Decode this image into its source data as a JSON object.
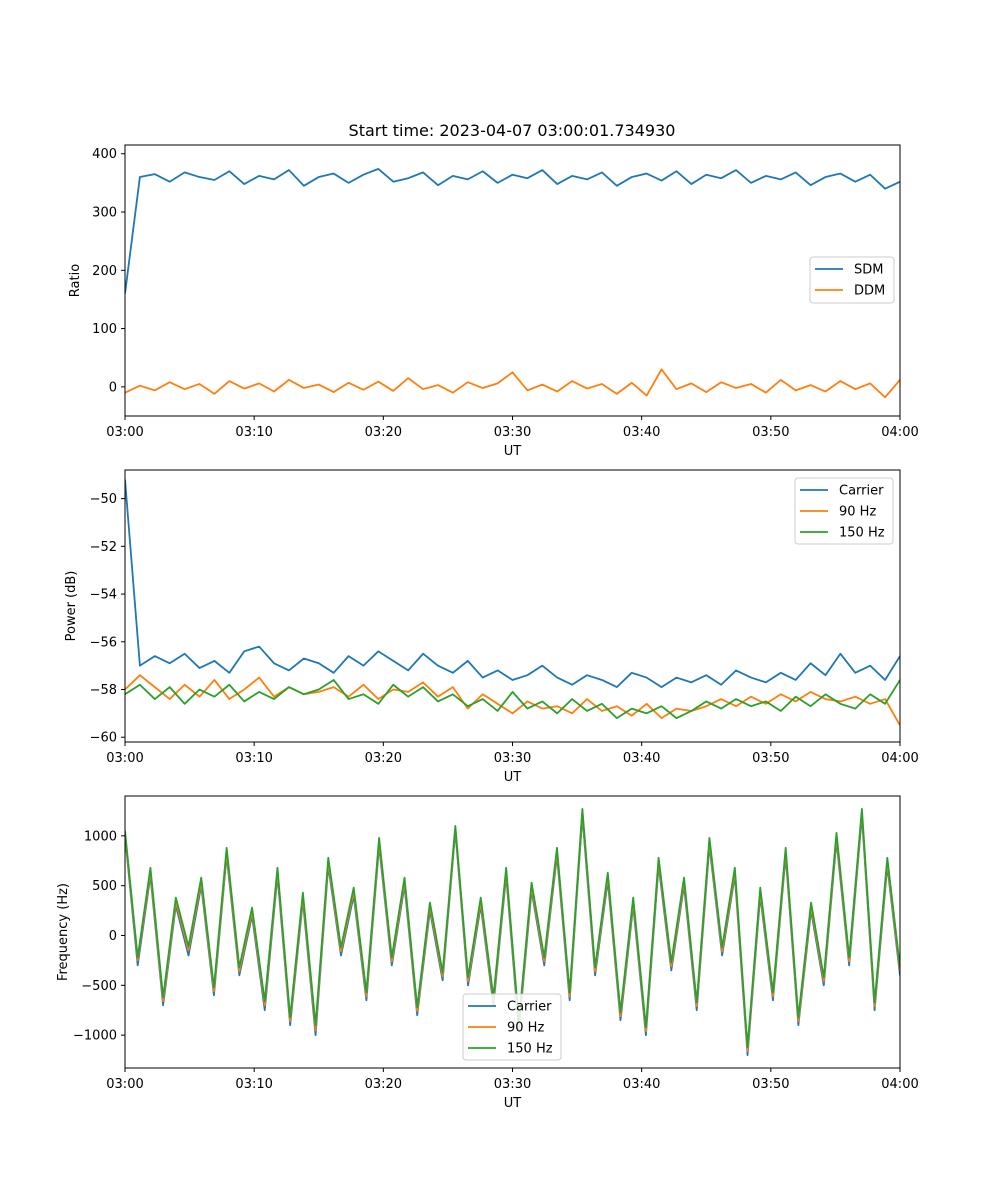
{
  "figure_title": "Start time: 2023-04-07 03:00:01.734930",
  "colors": {
    "blue": "#1f77b4",
    "orange": "#ff7f0e",
    "green": "#2ca02c"
  },
  "chart_data": [
    {
      "type": "line",
      "title": "Start time: 2023-04-07 03:00:01.734930",
      "xlabel": "UT",
      "ylabel": "Ratio",
      "x_ticks": [
        "03:00",
        "03:10",
        "03:20",
        "03:30",
        "03:40",
        "03:50",
        "04:00"
      ],
      "y_ticks": [
        "0",
        "100",
        "200",
        "300",
        "400"
      ],
      "y_tick_values": [
        0,
        100,
        200,
        300,
        400
      ],
      "xlim": [
        "03:00",
        "04:00"
      ],
      "ylim": [
        -50,
        415
      ],
      "legend_position": "center-right",
      "series": [
        {
          "name": "SDM",
          "color": "#1f77b4",
          "values": [
            160,
            360,
            365,
            352,
            368,
            360,
            355,
            370,
            348,
            362,
            356,
            372,
            345,
            360,
            366,
            350,
            364,
            374,
            352,
            358,
            368,
            346,
            362,
            356,
            370,
            350,
            364,
            358,
            372,
            348,
            362,
            356,
            368,
            345,
            360,
            366,
            354,
            370,
            348,
            364,
            358,
            372,
            350,
            362,
            356,
            368,
            346,
            360,
            366,
            352,
            364,
            340,
            352
          ]
        },
        {
          "name": "DDM",
          "color": "#ff7f0e",
          "values": [
            -10,
            2,
            -6,
            8,
            -4,
            5,
            -12,
            10,
            -3,
            6,
            -8,
            12,
            -2,
            4,
            -9,
            7,
            -5,
            9,
            -7,
            15,
            -4,
            3,
            -10,
            8,
            -2,
            6,
            25,
            -6,
            4,
            -8,
            10,
            -3,
            5,
            -12,
            7,
            -15,
            30,
            -4,
            6,
            -9,
            8,
            -2,
            5,
            -10,
            12,
            -6,
            3,
            -8,
            10,
            -4,
            6,
            -18,
            12
          ]
        }
      ]
    },
    {
      "type": "line",
      "xlabel": "UT",
      "ylabel": "Power (dB)",
      "x_ticks": [
        "03:00",
        "03:10",
        "03:20",
        "03:30",
        "03:40",
        "03:50",
        "04:00"
      ],
      "y_ticks": [
        "−60",
        "−58",
        "−56",
        "−54",
        "−52",
        "−50"
      ],
      "y_tick_values": [
        -60,
        -58,
        -56,
        -54,
        -52,
        -50
      ],
      "xlim": [
        "03:00",
        "04:00"
      ],
      "ylim": [
        -60.2,
        -48.8
      ],
      "legend_position": "upper-right",
      "series": [
        {
          "name": "Carrier",
          "color": "#1f77b4",
          "values": [
            -49.2,
            -57.0,
            -56.6,
            -56.9,
            -56.5,
            -57.1,
            -56.8,
            -57.3,
            -56.4,
            -56.2,
            -56.9,
            -57.2,
            -56.7,
            -56.9,
            -57.3,
            -56.6,
            -57.0,
            -56.4,
            -56.8,
            -57.2,
            -56.5,
            -57.0,
            -57.3,
            -56.8,
            -57.5,
            -57.2,
            -57.6,
            -57.4,
            -57.0,
            -57.5,
            -57.8,
            -57.4,
            -57.6,
            -57.9,
            -57.3,
            -57.5,
            -57.9,
            -57.5,
            -57.7,
            -57.4,
            -57.8,
            -57.2,
            -57.5,
            -57.7,
            -57.3,
            -57.6,
            -56.9,
            -57.4,
            -56.5,
            -57.3,
            -57.0,
            -57.6,
            -56.6
          ]
        },
        {
          "name": "90 Hz",
          "color": "#ff7f0e",
          "values": [
            -58.0,
            -57.4,
            -57.9,
            -58.4,
            -57.8,
            -58.3,
            -57.6,
            -58.4,
            -58.0,
            -57.5,
            -58.3,
            -57.9,
            -58.2,
            -58.1,
            -57.9,
            -58.3,
            -57.8,
            -58.4,
            -58.0,
            -58.1,
            -57.7,
            -58.3,
            -57.9,
            -58.8,
            -58.2,
            -58.6,
            -59.0,
            -58.5,
            -58.8,
            -58.7,
            -59.0,
            -58.4,
            -58.9,
            -58.7,
            -59.1,
            -58.6,
            -59.2,
            -58.8,
            -58.9,
            -58.7,
            -58.4,
            -58.7,
            -58.3,
            -58.6,
            -58.2,
            -58.5,
            -58.1,
            -58.4,
            -58.5,
            -58.3,
            -58.6,
            -58.4,
            -59.5
          ]
        },
        {
          "name": "150 Hz",
          "color": "#2ca02c",
          "values": [
            -58.2,
            -57.8,
            -58.4,
            -57.9,
            -58.6,
            -58.0,
            -58.3,
            -57.8,
            -58.5,
            -58.1,
            -58.4,
            -57.9,
            -58.2,
            -58.0,
            -57.6,
            -58.4,
            -58.2,
            -58.6,
            -57.8,
            -58.3,
            -57.9,
            -58.5,
            -58.2,
            -58.7,
            -58.4,
            -58.9,
            -58.1,
            -58.8,
            -58.5,
            -59.0,
            -58.4,
            -58.9,
            -58.6,
            -59.2,
            -58.8,
            -59.0,
            -58.7,
            -59.2,
            -58.9,
            -58.5,
            -58.8,
            -58.4,
            -58.7,
            -58.5,
            -58.9,
            -58.3,
            -58.7,
            -58.2,
            -58.6,
            -58.8,
            -58.2,
            -58.6,
            -57.6
          ]
        }
      ]
    },
    {
      "type": "line",
      "xlabel": "UT",
      "ylabel": "Frequency (Hz)",
      "x_ticks": [
        "03:00",
        "03:10",
        "03:20",
        "03:30",
        "03:40",
        "03:50",
        "04:00"
      ],
      "y_ticks": [
        "−1000",
        "−500",
        "0",
        "500",
        "1000"
      ],
      "y_tick_values": [
        -1000,
        -500,
        0,
        500,
        1000
      ],
      "xlim": [
        "03:00",
        "04:00"
      ],
      "ylim": [
        -1330,
        1400
      ],
      "legend_position": "lower-center",
      "series": [
        {
          "name": "Carrier",
          "color": "#1f77b4",
          "values": [
            1000,
            -300,
            600,
            -700,
            300,
            -200,
            500,
            -600,
            800,
            -400,
            200,
            -750,
            600,
            -900,
            350,
            -1000,
            700,
            -200,
            400,
            -650,
            900,
            -300,
            500,
            -800,
            250,
            -450,
            1050,
            -500,
            300,
            -700,
            600,
            -950,
            450,
            -300,
            800,
            -650,
            1200,
            -400,
            550,
            -850,
            300,
            -1000,
            700,
            -350,
            500,
            -750,
            900,
            -200,
            600,
            -1200,
            400,
            -650,
            800,
            -900,
            250,
            -500,
            950,
            -300,
            1200,
            -750,
            700,
            -400
          ]
        },
        {
          "name": "90 Hz",
          "color": "#ff7f0e",
          "values": [
            1020,
            -250,
            640,
            -660,
            340,
            -150,
            540,
            -560,
            840,
            -360,
            240,
            -700,
            640,
            -860,
            390,
            -950,
            740,
            -160,
            440,
            -610,
            940,
            -260,
            540,
            -760,
            290,
            -410,
            1080,
            -460,
            340,
            -660,
            640,
            -910,
            490,
            -260,
            840,
            -610,
            1240,
            -360,
            590,
            -810,
            340,
            -960,
            740,
            -310,
            540,
            -710,
            940,
            -160,
            640,
            -1160,
            440,
            -610,
            840,
            -860,
            290,
            -460,
            990,
            -260,
            1240,
            -710,
            740,
            -360
          ]
        },
        {
          "name": "150 Hz",
          "color": "#2ca02c",
          "values": [
            1050,
            -220,
            680,
            -620,
            380,
            -110,
            580,
            -520,
            880,
            -320,
            280,
            -660,
            680,
            -820,
            430,
            -900,
            780,
            -120,
            480,
            -570,
            980,
            -220,
            580,
            -720,
            330,
            -370,
            1100,
            -420,
            380,
            -620,
            680,
            -870,
            530,
            -220,
            880,
            -570,
            1270,
            -320,
            630,
            -770,
            380,
            -920,
            780,
            -270,
            580,
            -670,
            980,
            -120,
            680,
            -1120,
            480,
            -570,
            880,
            -820,
            330,
            -420,
            1030,
            -220,
            1270,
            -670,
            780,
            -320
          ]
        }
      ]
    }
  ]
}
